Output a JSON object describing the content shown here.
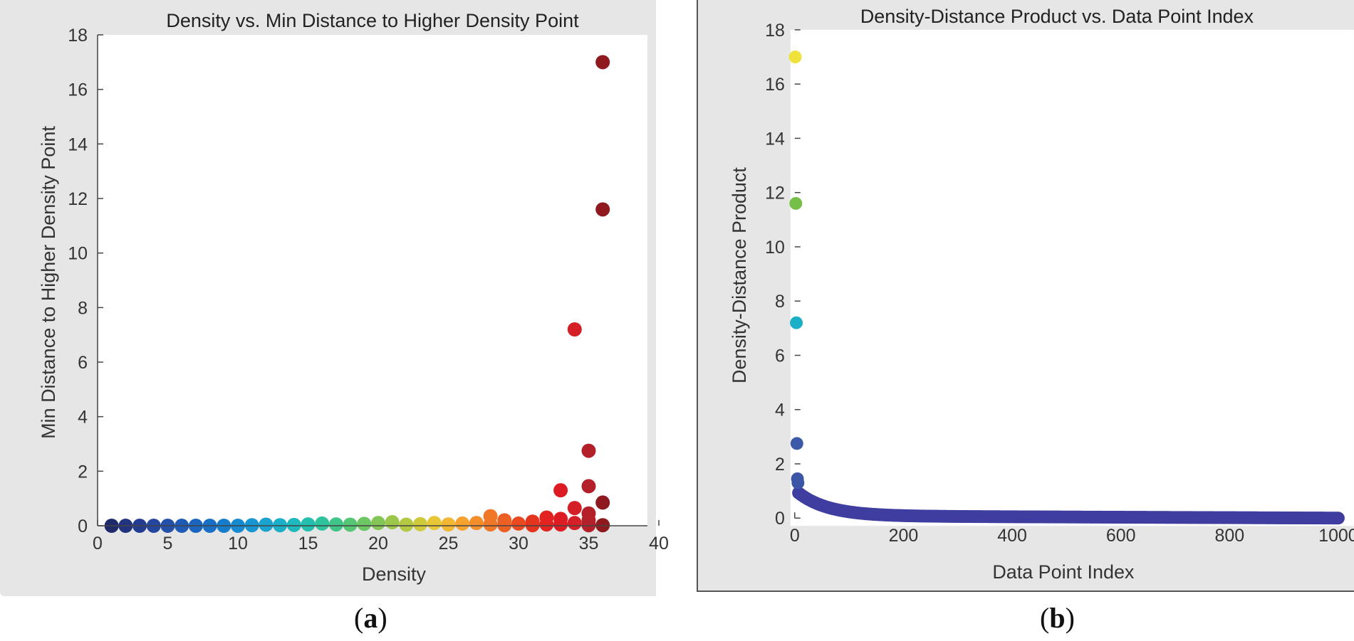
{
  "chart_data": [
    {
      "type": "scatter",
      "title": "Density vs. Min Distance to Higher Density Point",
      "xlabel": "Density",
      "ylabel": "Min Distance to Higher Density Point",
      "xlim": [
        0,
        40
      ],
      "ylim": [
        0,
        18
      ],
      "xticks": [
        "0",
        "5",
        "10",
        "15",
        "20",
        "25",
        "30",
        "35",
        "40"
      ],
      "yticks": [
        "0",
        "2",
        "4",
        "6",
        "8",
        "10",
        "12",
        "14",
        "16",
        "18"
      ],
      "colormap": "jet (by density)",
      "points": [
        {
          "x": 1,
          "y": 0.0,
          "color": "#1f2a6b"
        },
        {
          "x": 2,
          "y": 0.0,
          "color": "#22337f"
        },
        {
          "x": 3,
          "y": 0.0,
          "color": "#243c90"
        },
        {
          "x": 4,
          "y": 0.0,
          "color": "#24469e"
        },
        {
          "x": 5,
          "y": 0.0,
          "color": "#2350aa"
        },
        {
          "x": 6,
          "y": 0.0,
          "color": "#1f5ab5"
        },
        {
          "x": 7,
          "y": 0.0,
          "color": "#1b65be"
        },
        {
          "x": 8,
          "y": 0.0,
          "color": "#1870c6"
        },
        {
          "x": 9,
          "y": 0.0,
          "color": "#167ccc"
        },
        {
          "x": 10,
          "y": 0.0,
          "color": "#1689d0"
        },
        {
          "x": 11,
          "y": 0.02,
          "color": "#1896d1"
        },
        {
          "x": 12,
          "y": 0.04,
          "color": "#1aa3cf"
        },
        {
          "x": 13,
          "y": 0.02,
          "color": "#1cafc8"
        },
        {
          "x": 14,
          "y": 0.03,
          "color": "#1eb8bd"
        },
        {
          "x": 15,
          "y": 0.05,
          "color": "#22bfae"
        },
        {
          "x": 16,
          "y": 0.08,
          "color": "#2ec39c"
        },
        {
          "x": 17,
          "y": 0.05,
          "color": "#40c588"
        },
        {
          "x": 18,
          "y": 0.04,
          "color": "#55c674"
        },
        {
          "x": 19,
          "y": 0.07,
          "color": "#6cc663"
        },
        {
          "x": 20,
          "y": 0.1,
          "color": "#84c655"
        },
        {
          "x": 21,
          "y": 0.13,
          "color": "#9cc74a"
        },
        {
          "x": 22,
          "y": 0.04,
          "color": "#b5c842"
        },
        {
          "x": 23,
          "y": 0.06,
          "color": "#cfc93c"
        },
        {
          "x": 24,
          "y": 0.1,
          "color": "#e8c737"
        },
        {
          "x": 25,
          "y": 0.05,
          "color": "#f3b633"
        },
        {
          "x": 26,
          "y": 0.08,
          "color": "#f5a22f"
        },
        {
          "x": 27,
          "y": 0.1,
          "color": "#f48e2b"
        },
        {
          "x": 28,
          "y": 0.35,
          "color": "#f07727"
        },
        {
          "x": 28,
          "y": 0.05,
          "color": "#f07727"
        },
        {
          "x": 29,
          "y": 0.2,
          "color": "#ec6023"
        },
        {
          "x": 29,
          "y": 0.02,
          "color": "#ec6023"
        },
        {
          "x": 30,
          "y": 0.08,
          "color": "#e8491f"
        },
        {
          "x": 31,
          "y": 0.15,
          "color": "#e5341e"
        },
        {
          "x": 31,
          "y": 0.02,
          "color": "#e5341e"
        },
        {
          "x": 32,
          "y": 0.3,
          "color": "#e2231f"
        },
        {
          "x": 32,
          "y": 0.05,
          "color": "#e2231f"
        },
        {
          "x": 33,
          "y": 1.3,
          "color": "#dc1c22"
        },
        {
          "x": 33,
          "y": 0.25,
          "color": "#dc1c22"
        },
        {
          "x": 33,
          "y": 0.05,
          "color": "#dc1c22"
        },
        {
          "x": 34,
          "y": 7.2,
          "color": "#d41f26"
        },
        {
          "x": 34,
          "y": 0.65,
          "color": "#d41f26"
        },
        {
          "x": 34,
          "y": 0.1,
          "color": "#d41f26"
        },
        {
          "x": 35,
          "y": 2.75,
          "color": "#b32029"
        },
        {
          "x": 35,
          "y": 1.45,
          "color": "#b32029"
        },
        {
          "x": 35,
          "y": 0.45,
          "color": "#b32029"
        },
        {
          "x": 35,
          "y": 0.2,
          "color": "#b32029"
        },
        {
          "x": 35,
          "y": 0.02,
          "color": "#b32029"
        },
        {
          "x": 36,
          "y": 17.0,
          "color": "#8e1a1f"
        },
        {
          "x": 36,
          "y": 11.6,
          "color": "#8e1a1f"
        },
        {
          "x": 36,
          "y": 0.85,
          "color": "#8e1a1f"
        },
        {
          "x": 36,
          "y": 0.02,
          "color": "#8e1a1f"
        }
      ]
    },
    {
      "type": "scatter",
      "title": "Density-Distance Product vs. Data Point Index",
      "xlabel": "Data Point Index",
      "ylabel": "Density-Distance Product",
      "xlim": [
        0,
        1000
      ],
      "ylim": [
        0,
        18
      ],
      "xticks": [
        "0",
        "200",
        "400",
        "600",
        "800",
        "1000"
      ],
      "yticks": [
        "0",
        "2",
        "4",
        "6",
        "8",
        "10",
        "12",
        "14",
        "16",
        "18"
      ],
      "highlighted_points": [
        {
          "x": 1,
          "y": 17.0,
          "color": "#f0e23a"
        },
        {
          "x": 2,
          "y": 11.6,
          "color": "#76c04a"
        },
        {
          "x": 3,
          "y": 7.2,
          "color": "#1ab0c8"
        },
        {
          "x": 4,
          "y": 2.75,
          "color": "#3d5aa8"
        },
        {
          "x": 5,
          "y": 1.45,
          "color": "#3d55a5"
        },
        {
          "x": 6,
          "y": 1.3,
          "color": "#3d55a5"
        }
      ],
      "tail": {
        "x_start": 7,
        "x_end": 1000,
        "y_start": 0.85,
        "y_end": 0.0,
        "color": "#3f3ea0",
        "description": "decaying curve near zero"
      }
    }
  ],
  "captions": {
    "a_letter": "a",
    "b_letter": "b",
    "open": "(",
    "close": ")"
  }
}
